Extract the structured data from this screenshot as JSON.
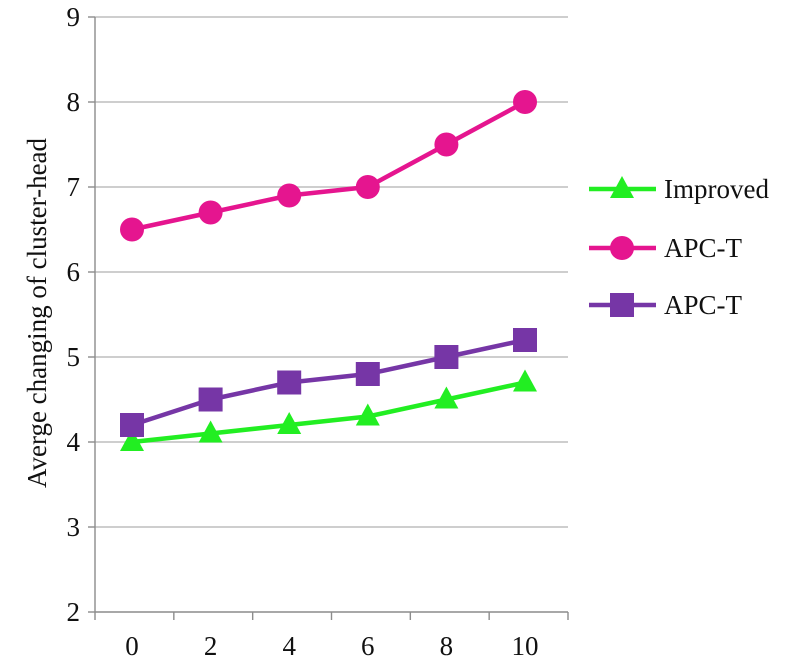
{
  "chart_data": {
    "type": "line",
    "title": "",
    "xlabel": "",
    "ylabel": "Averge changing of cluster-head",
    "x": [
      0,
      2,
      4,
      6,
      8,
      10
    ],
    "x_tick_labels": [
      "0",
      "2",
      "4",
      "6",
      "8",
      "10"
    ],
    "ylim": [
      2,
      9
    ],
    "y_ticks": [
      2,
      3,
      4,
      5,
      6,
      7,
      8,
      9
    ],
    "y_tick_labels": [
      "2",
      "3",
      "4",
      "5",
      "6",
      "7",
      "8",
      "9"
    ],
    "grid": "horizontal",
    "legend_position": "right",
    "series": [
      {
        "name": "Improved",
        "color": "#22ee22",
        "marker": "triangle",
        "values": [
          4.0,
          4.1,
          4.2,
          4.3,
          4.5,
          4.7
        ]
      },
      {
        "name": "APC-T",
        "color": "#e5158f",
        "marker": "circle",
        "values": [
          6.5,
          6.7,
          6.9,
          7.0,
          7.5,
          8.0
        ]
      },
      {
        "name": "APC-T",
        "color": "#7636a6",
        "marker": "square",
        "values": [
          4.2,
          4.5,
          4.7,
          4.8,
          5.0,
          5.2
        ]
      }
    ]
  }
}
